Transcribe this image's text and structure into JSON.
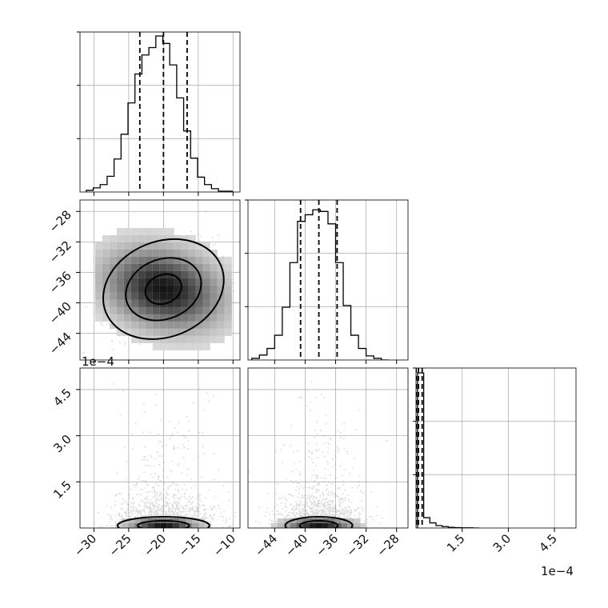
{
  "chart_data": {
    "type": "corner",
    "offset_label": "1e−4",
    "parameters": [
      {
        "range": [
          -32,
          -9
        ],
        "ticks": [
          -30,
          -25,
          -20,
          -15,
          -10
        ],
        "tick_labels": [
          "−30",
          "−25",
          "−20",
          "−15",
          "−10"
        ],
        "quantiles": [
          -23.4,
          -20,
          -16.6
        ],
        "histogram": {
          "bin_edges": [
            -31.1,
            -30.1,
            -29.1,
            -28.1,
            -27.1,
            -26.1,
            -25.1,
            -24.1,
            -23.1,
            -22.1,
            -21.1,
            -20.1,
            -19.1,
            -18.1,
            -17.1,
            -16.1,
            -15.1,
            -14.1,
            -13.1,
            -12.1,
            -11.1,
            -10.1
          ],
          "counts": [
            2,
            5,
            9,
            19,
            40,
            70,
            108,
            143,
            166,
            175,
            189,
            180,
            154,
            114,
            74,
            41,
            18,
            9,
            4,
            1,
            1
          ],
          "ymax": 190
        }
      },
      {
        "range": [
          -47.5,
          -26.5
        ],
        "ticks": [
          -44,
          -40,
          -36,
          -32,
          -28
        ],
        "tick_labels": [
          "−44",
          "−40",
          "−36",
          "−32",
          "−28"
        ],
        "quantiles": [
          -40.6,
          -38.2,
          -35.8
        ],
        "histogram": {
          "bin_edges": [
            -47,
            -46,
            -45,
            -44,
            -43,
            -42,
            -41,
            -40,
            -39,
            -38,
            -37,
            -36,
            -35,
            -34,
            -33,
            -32,
            -31,
            -30,
            -29
          ],
          "counts": [
            2,
            6,
            14,
            30,
            64,
            118,
            168,
            176,
            182,
            180,
            165,
            118,
            66,
            30,
            14,
            5,
            2,
            0
          ],
          "ymax": 190
        }
      },
      {
        "range": [
          0,
          5.2
        ],
        "ticks": [
          1.5,
          3.0,
          4.5
        ],
        "tick_labels": [
          "1.5",
          "3.0",
          "4.5"
        ],
        "quantiles": [
          0.0035,
          0.08,
          0.2
        ],
        "histogram": {
          "bin_edges": [
            0.05,
            0.25,
            0.45,
            0.65,
            0.85,
            1.05,
            1.25,
            1.45,
            1.65,
            1.85,
            2.05
          ],
          "counts": [
            900,
            60,
            30,
            14,
            8,
            4,
            2,
            1,
            1,
            0
          ],
          "ymax": 910
        }
      }
    ],
    "scatter_clouds": [
      {
        "panel": "1-0",
        "center": [
          -20,
          -38.2
        ],
        "sd": [
          3.6,
          2.7
        ],
        "corr": 0.35,
        "n": 1300
      },
      {
        "panel": "2-0",
        "center": [
          -20,
          0.16
        ],
        "sd": [
          3.6,
          0.45
        ],
        "corr": 0.0,
        "n": 1100
      },
      {
        "panel": "2-1",
        "center": [
          -38.2,
          0.16
        ],
        "sd": [
          2.7,
          0.45
        ],
        "corr": 0.0,
        "n": 1100
      }
    ],
    "contours": [
      {
        "panel": "1-0",
        "levels": [
          {
            "sd_scale": 0.48,
            "stroke": 2
          },
          {
            "sd_scale": 1.0,
            "stroke": 2
          },
          {
            "sd_scale": 1.6,
            "stroke": 2
          }
        ]
      }
    ],
    "grid": true
  }
}
